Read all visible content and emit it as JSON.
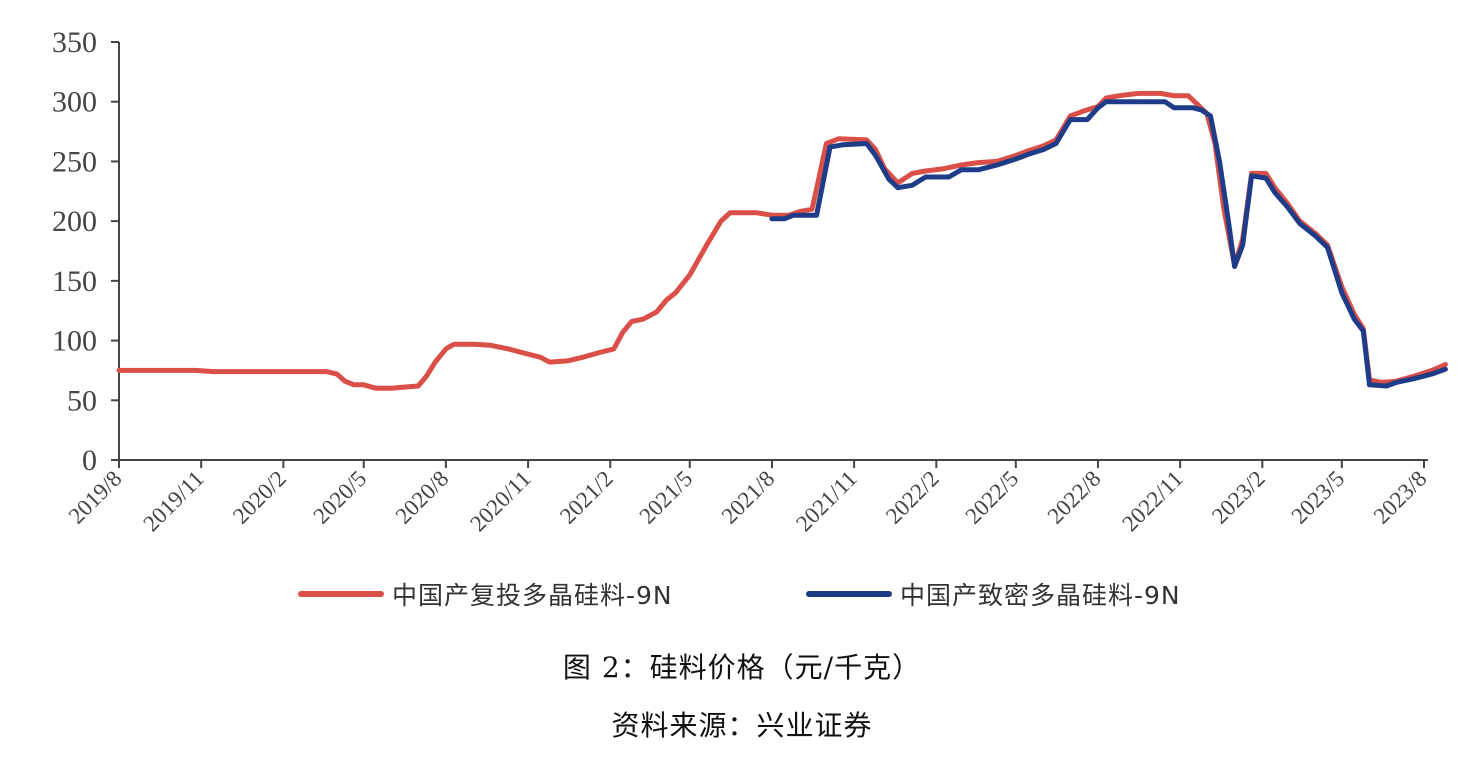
{
  "chart_data": {
    "type": "line",
    "title": "图 2：硅料价格（元/千克）",
    "source": "资料来源：兴业证券",
    "ylim": [
      0,
      350
    ],
    "yticks": [
      0,
      50,
      100,
      150,
      200,
      250,
      300,
      350
    ],
    "xlim": [
      "2019/8",
      "2023/8"
    ],
    "xticks": [
      "2019/8",
      "2019/11",
      "2020/2",
      "2020/5",
      "2020/8",
      "2020/11",
      "2021/2",
      "2021/5",
      "2021/8",
      "2021/11",
      "2022/2",
      "2022/5",
      "2022/8",
      "2022/11",
      "2023/2",
      "2023/5",
      "2023/8"
    ],
    "grid": false,
    "legend_position": "bottom",
    "series": [
      {
        "name": "中国产复投多晶硅料-9N",
        "color": "#DA4F47",
        "points": [
          [
            "2019-08-01",
            75
          ],
          [
            "2019-09-10",
            75
          ],
          [
            "2019-10-25",
            75
          ],
          [
            "2019-11-15",
            74
          ],
          [
            "2020-01-15",
            74
          ],
          [
            "2020-03-01",
            74
          ],
          [
            "2020-03-20",
            74
          ],
          [
            "2020-04-01",
            72
          ],
          [
            "2020-04-10",
            66
          ],
          [
            "2020-04-20",
            63
          ],
          [
            "2020-05-01",
            63
          ],
          [
            "2020-05-15",
            60
          ],
          [
            "2020-06-01",
            60
          ],
          [
            "2020-06-15",
            61
          ],
          [
            "2020-07-01",
            62
          ],
          [
            "2020-07-10",
            70
          ],
          [
            "2020-07-20",
            82
          ],
          [
            "2020-08-01",
            93
          ],
          [
            "2020-08-10",
            97
          ],
          [
            "2020-09-01",
            97
          ],
          [
            "2020-09-20",
            96
          ],
          [
            "2020-10-10",
            93
          ],
          [
            "2020-10-25",
            90
          ],
          [
            "2020-11-15",
            86
          ],
          [
            "2020-11-25",
            82
          ],
          [
            "2020-12-15",
            83
          ],
          [
            "2021-01-01",
            86
          ],
          [
            "2021-01-20",
            90
          ],
          [
            "2021-02-05",
            93
          ],
          [
            "2021-02-15",
            107
          ],
          [
            "2021-02-25",
            116
          ],
          [
            "2021-03-10",
            118
          ],
          [
            "2021-03-25",
            124
          ],
          [
            "2021-04-05",
            134
          ],
          [
            "2021-04-15",
            140
          ],
          [
            "2021-05-01",
            155
          ],
          [
            "2021-05-20",
            180
          ],
          [
            "2021-06-05",
            200
          ],
          [
            "2021-06-15",
            207
          ],
          [
            "2021-07-15",
            207
          ],
          [
            "2021-08-01",
            205
          ],
          [
            "2021-08-20",
            205
          ],
          [
            "2021-09-01",
            208
          ],
          [
            "2021-09-15",
            210
          ],
          [
            "2021-10-01",
            265
          ],
          [
            "2021-10-15",
            269
          ],
          [
            "2021-11-15",
            268
          ],
          [
            "2021-11-25",
            260
          ],
          [
            "2021-12-05",
            244
          ],
          [
            "2021-12-20",
            232
          ],
          [
            "2022-01-05",
            240
          ],
          [
            "2022-01-20",
            242
          ],
          [
            "2022-02-10",
            244
          ],
          [
            "2022-03-01",
            247
          ],
          [
            "2022-03-20",
            249
          ],
          [
            "2022-04-10",
            250
          ],
          [
            "2022-05-01",
            255
          ],
          [
            "2022-05-15",
            259
          ],
          [
            "2022-06-01",
            263
          ],
          [
            "2022-06-15",
            268
          ],
          [
            "2022-07-01",
            288
          ],
          [
            "2022-07-15",
            292
          ],
          [
            "2022-08-01",
            296
          ],
          [
            "2022-08-10",
            303
          ],
          [
            "2022-08-25",
            305
          ],
          [
            "2022-09-15",
            307
          ],
          [
            "2022-10-10",
            307
          ],
          [
            "2022-10-25",
            305
          ],
          [
            "2022-11-10",
            305
          ],
          [
            "2022-11-20",
            298
          ],
          [
            "2022-12-01",
            290
          ],
          [
            "2022-12-10",
            265
          ],
          [
            "2022-12-20",
            210
          ],
          [
            "2023-01-01",
            163
          ],
          [
            "2023-01-10",
            185
          ],
          [
            "2023-01-20",
            240
          ],
          [
            "2023-02-05",
            240
          ],
          [
            "2023-02-15",
            228
          ],
          [
            "2023-03-01",
            215
          ],
          [
            "2023-03-15",
            200
          ],
          [
            "2023-04-01",
            190
          ],
          [
            "2023-04-15",
            180
          ],
          [
            "2023-05-01",
            145
          ],
          [
            "2023-05-15",
            122
          ],
          [
            "2023-05-25",
            110
          ],
          [
            "2023-06-01",
            67
          ],
          [
            "2023-06-15",
            65
          ],
          [
            "2023-07-01",
            66
          ],
          [
            "2023-07-20",
            70
          ],
          [
            "2023-08-10",
            75
          ],
          [
            "2023-08-25",
            80
          ]
        ]
      },
      {
        "name": "中国产致密多晶硅料-9N",
        "color": "#1F3C88",
        "points": [
          [
            "2021-08-01",
            202
          ],
          [
            "2021-08-15",
            202
          ],
          [
            "2021-08-25",
            205
          ],
          [
            "2021-09-20",
            205
          ],
          [
            "2021-10-05",
            262
          ],
          [
            "2021-10-20",
            264
          ],
          [
            "2021-11-15",
            265
          ],
          [
            "2021-11-25",
            255
          ],
          [
            "2021-12-10",
            235
          ],
          [
            "2021-12-20",
            228
          ],
          [
            "2022-01-05",
            230
          ],
          [
            "2022-01-20",
            237
          ],
          [
            "2022-02-15",
            237
          ],
          [
            "2022-03-01",
            243
          ],
          [
            "2022-03-20",
            243
          ],
          [
            "2022-04-10",
            247
          ],
          [
            "2022-05-01",
            252
          ],
          [
            "2022-05-15",
            256
          ],
          [
            "2022-06-01",
            260
          ],
          [
            "2022-06-15",
            265
          ],
          [
            "2022-07-01",
            285
          ],
          [
            "2022-07-20",
            285
          ],
          [
            "2022-08-01",
            295
          ],
          [
            "2022-08-10",
            300
          ],
          [
            "2022-09-15",
            300
          ],
          [
            "2022-10-15",
            300
          ],
          [
            "2022-10-25",
            295
          ],
          [
            "2022-11-15",
            295
          ],
          [
            "2022-11-25",
            293
          ],
          [
            "2022-12-05",
            288
          ],
          [
            "2022-12-15",
            250
          ],
          [
            "2022-12-25",
            200
          ],
          [
            "2023-01-01",
            162
          ],
          [
            "2023-01-10",
            180
          ],
          [
            "2023-01-20",
            238
          ],
          [
            "2023-02-05",
            236
          ],
          [
            "2023-02-15",
            224
          ],
          [
            "2023-03-01",
            212
          ],
          [
            "2023-03-15",
            198
          ],
          [
            "2023-04-01",
            188
          ],
          [
            "2023-04-15",
            178
          ],
          [
            "2023-05-01",
            140
          ],
          [
            "2023-05-15",
            118
          ],
          [
            "2023-05-25",
            108
          ],
          [
            "2023-06-01",
            63
          ],
          [
            "2023-06-20",
            62
          ],
          [
            "2023-07-01",
            65
          ],
          [
            "2023-07-20",
            68
          ],
          [
            "2023-08-10",
            72
          ],
          [
            "2023-08-25",
            76
          ]
        ]
      }
    ]
  }
}
